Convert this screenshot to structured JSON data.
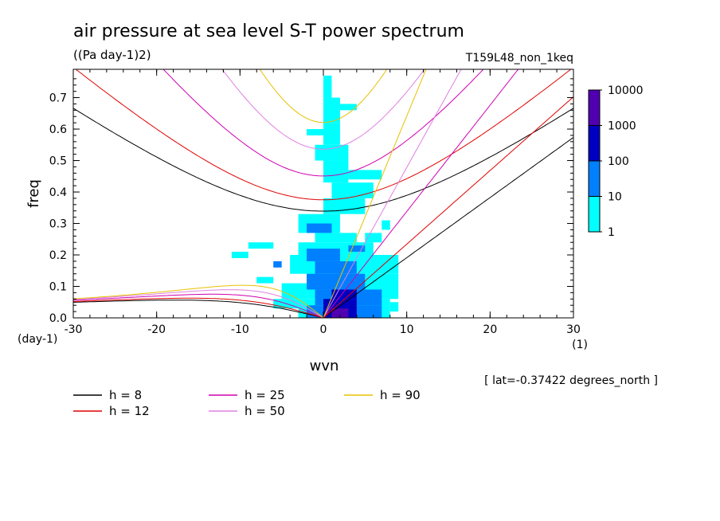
{
  "chart_data": {
    "type": "heatmap",
    "title": "air pressure at sea level S-T power spectrum",
    "subtitle": "((Pa day-1)2)",
    "run_label": "T159L48_non_1keq",
    "xlabel": "wvn",
    "ylabel": "freq",
    "x_unit": "(1)",
    "y_unit": "(day-1)",
    "footnote": "[ lat=-0.37422 degrees_north ]",
    "xlim": [
      -30,
      30
    ],
    "ylim": [
      0,
      0.79
    ],
    "x_ticks": [
      -30,
      -20,
      -10,
      0,
      10,
      20,
      30
    ],
    "x_tick_labels": [
      "-30",
      "-20",
      "-10",
      "0",
      "10",
      "20",
      "30"
    ],
    "y_ticks": [
      0,
      0.1,
      0.2,
      0.3,
      0.4,
      0.5,
      0.6,
      0.7
    ],
    "y_tick_labels": [
      "0.0",
      "0.1",
      "0.2",
      "0.3",
      "0.4",
      "0.5",
      "0.6",
      "0.7"
    ],
    "colorbar": {
      "levels": [
        "1",
        "10",
        "100",
        "1000",
        "10000"
      ],
      "colors": [
        "#00ffff",
        "#0080ff",
        "#0000c0",
        "#5000b0"
      ]
    },
    "heatmap_cells": [
      {
        "x0": -6,
        "x1": -3,
        "y0": 0.03,
        "y1": 0.06,
        "level": 1
      },
      {
        "x0": -5,
        "x1": -2,
        "y0": 0.06,
        "y1": 0.11,
        "level": 1
      },
      {
        "x0": -8,
        "x1": -6,
        "y0": 0.11,
        "y1": 0.13,
        "level": 1
      },
      {
        "x0": -3,
        "x1": 8,
        "y0": 0.0,
        "y1": 0.06,
        "level": 1
      },
      {
        "x0": -2,
        "x1": 9,
        "y0": 0.06,
        "y1": 0.14,
        "level": 1
      },
      {
        "x0": -4,
        "x1": 9,
        "y0": 0.14,
        "y1": 0.2,
        "level": 1
      },
      {
        "x0": -3,
        "x1": 6,
        "y0": 0.2,
        "y1": 0.24,
        "level": 1
      },
      {
        "x0": -1,
        "x1": 4,
        "y0": 0.24,
        "y1": 0.27,
        "level": 1
      },
      {
        "x0": -3,
        "x1": 2,
        "y0": 0.27,
        "y1": 0.33,
        "level": 1
      },
      {
        "x0": 0,
        "x1": 5,
        "y0": 0.33,
        "y1": 0.38,
        "level": 1
      },
      {
        "x0": 1,
        "x1": 6,
        "y0": 0.38,
        "y1": 0.43,
        "level": 1
      },
      {
        "x0": 0,
        "x1": 3,
        "y0": 0.43,
        "y1": 0.5,
        "level": 1
      },
      {
        "x0": -1,
        "x1": 3,
        "y0": 0.5,
        "y1": 0.55,
        "level": 1
      },
      {
        "x0": 0,
        "x1": 2,
        "y0": 0.55,
        "y1": 0.62,
        "level": 1
      },
      {
        "x0": 0,
        "x1": 2,
        "y0": 0.62,
        "y1": 0.7,
        "level": 1
      },
      {
        "x0": 0,
        "x1": 1,
        "y0": 0.7,
        "y1": 0.77,
        "level": 1
      },
      {
        "x0": 5,
        "x1": 7,
        "y0": 0.24,
        "y1": 0.27,
        "level": 1
      },
      {
        "x0": 7,
        "x1": 8,
        "y0": 0.28,
        "y1": 0.31,
        "level": 1
      },
      {
        "x0": -11,
        "x1": -9,
        "y0": 0.19,
        "y1": 0.21,
        "level": 1
      },
      {
        "x0": -9,
        "x1": -6,
        "y0": 0.22,
        "y1": 0.24,
        "level": 1
      },
      {
        "x0": 3,
        "x1": 7,
        "y0": 0.44,
        "y1": 0.47,
        "level": 1
      },
      {
        "x0": 1,
        "x1": 4,
        "y0": 0.66,
        "y1": 0.68,
        "level": 1
      },
      {
        "x0": -2,
        "x1": 0,
        "y0": 0.58,
        "y1": 0.6,
        "level": 1
      },
      {
        "x0": 8,
        "x1": 9,
        "y0": 0.02,
        "y1": 0.05,
        "level": 1
      },
      {
        "x0": -2,
        "x1": 7,
        "y0": 0.0,
        "y1": 0.04,
        "level": 2
      },
      {
        "x0": -1,
        "x1": 7,
        "y0": 0.04,
        "y1": 0.09,
        "level": 2
      },
      {
        "x0": -2,
        "x1": 5,
        "y0": 0.09,
        "y1": 0.14,
        "level": 2
      },
      {
        "x0": -1,
        "x1": 4,
        "y0": 0.14,
        "y1": 0.18,
        "level": 2
      },
      {
        "x0": -2,
        "x1": 2,
        "y0": 0.18,
        "y1": 0.22,
        "level": 2
      },
      {
        "x0": -2,
        "x1": 1,
        "y0": 0.27,
        "y1": 0.3,
        "level": 2
      },
      {
        "x0": -6,
        "x1": -5,
        "y0": 0.16,
        "y1": 0.18,
        "level": 2
      },
      {
        "x0": 3,
        "x1": 5,
        "y0": 0.21,
        "y1": 0.23,
        "level": 2
      },
      {
        "x0": 0,
        "x1": 4,
        "y0": 0.0,
        "y1": 0.06,
        "level": 3
      },
      {
        "x0": 1,
        "x1": 4,
        "y0": 0.06,
        "y1": 0.09,
        "level": 3
      },
      {
        "x0": 1,
        "x1": 3,
        "y0": 0.0,
        "y1": 0.03,
        "level": 4
      }
    ],
    "series": [
      {
        "name": "h =  8",
        "color": "#000000",
        "h": 8
      },
      {
        "name": "h = 12",
        "color": "#e00000",
        "h": 12
      },
      {
        "name": "h = 25",
        "color": "#d000b0",
        "h": 25
      },
      {
        "name": "h = 50",
        "color": "#e080e0",
        "h": 50
      },
      {
        "name": "h = 90",
        "color": "#e8c000",
        "h": 90
      }
    ]
  }
}
